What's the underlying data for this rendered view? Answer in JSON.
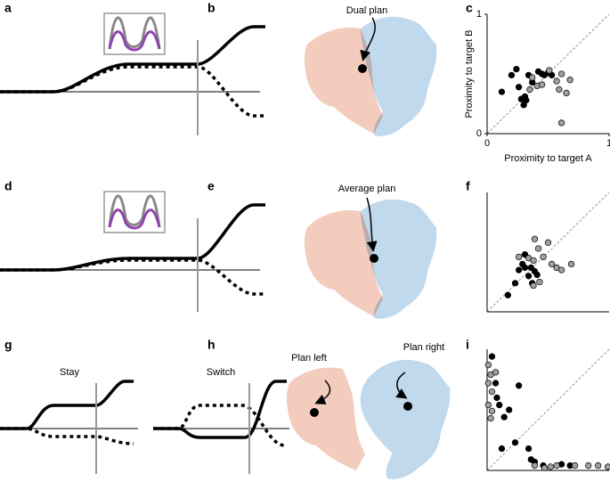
{
  "panels": {
    "letters": [
      "a",
      "b",
      "c",
      "d",
      "e",
      "f",
      "g",
      "h",
      "i"
    ]
  },
  "annotations": {
    "b": "Dual plan",
    "e": "Average plan",
    "h_left": "Plan left",
    "h_right": "Plan right",
    "g_left": "Stay",
    "g_right": "Switch"
  },
  "chart_data": [
    {
      "type": "scatter",
      "xlabel": "Proximity to target A",
      "ylabel": "Proximity to target B",
      "xlim": [
        0,
        1
      ],
      "ylim": [
        0,
        1
      ],
      "xticks": [
        0,
        1
      ],
      "yticks": [
        0,
        1
      ],
      "series": [
        {
          "color": "#000000",
          "x": [
            0.12,
            0.2,
            0.24,
            0.26,
            0.28,
            0.31,
            0.3,
            0.32,
            0.34,
            0.37,
            0.42,
            0.45,
            0.47,
            0.5,
            0.53
          ],
          "values": [
            0.35,
            0.49,
            0.54,
            0.39,
            0.29,
            0.31,
            0.24,
            0.28,
            0.49,
            0.43,
            0.52,
            0.5,
            0.49,
            0.51,
            0.49
          ]
        },
        {
          "color": "#a0a0a0",
          "x": [
            0.35,
            0.37,
            0.41,
            0.45,
            0.51,
            0.57,
            0.61,
            0.65,
            0.68,
            0.59,
            0.61
          ],
          "values": [
            0.37,
            0.47,
            0.4,
            0.41,
            0.53,
            0.44,
            0.5,
            0.34,
            0.45,
            0.37,
            0.09
          ]
        }
      ]
    },
    {
      "type": "scatter",
      "xlim": [
        0,
        1
      ],
      "ylim": [
        0,
        1
      ],
      "series": [
        {
          "color": "#000000",
          "x": [
            0.17,
            0.23,
            0.26,
            0.29,
            0.31,
            0.36,
            0.34,
            0.39,
            0.37,
            0.41,
            0.31
          ],
          "values": [
            0.14,
            0.24,
            0.35,
            0.4,
            0.37,
            0.37,
            0.3,
            0.34,
            0.24,
            0.31,
            0.48
          ]
        },
        {
          "color": "#a0a0a0",
          "x": [
            0.34,
            0.38,
            0.42,
            0.46,
            0.5,
            0.53,
            0.57,
            0.61,
            0.69,
            0.38,
            0.43,
            0.26,
            0.39
          ],
          "values": [
            0.45,
            0.43,
            0.53,
            0.46,
            0.58,
            0.4,
            0.37,
            0.35,
            0.4,
            0.22,
            0.25,
            0.46,
            0.61
          ]
        }
      ]
    },
    {
      "type": "scatter",
      "xlim": [
        0,
        1
      ],
      "ylim": [
        0,
        1
      ],
      "series": [
        {
          "color": "#000000",
          "x": [
            0.04,
            0.07,
            0.08,
            0.1,
            0.14,
            0.18,
            0.26,
            0.12,
            0.23,
            0.34,
            0.36,
            0.39,
            0.46,
            0.61,
            0.68
          ],
          "values": [
            0.94,
            0.72,
            0.6,
            0.54,
            0.44,
            0.5,
            0.7,
            0.18,
            0.23,
            0.18,
            0.09,
            0.07,
            0.04,
            0.05,
            0.04
          ]
        },
        {
          "color": "#a0a0a0",
          "x": [
            0.01,
            0.03,
            0.01,
            0.04,
            0.01,
            0.04,
            0.03,
            0.07,
            0.39,
            0.52,
            0.57,
            0.72,
            0.83,
            0.91,
            0.99,
            0.47
          ],
          "values": [
            0.87,
            0.79,
            0.72,
            0.65,
            0.54,
            0.49,
            0.43,
            0.81,
            0.04,
            0.03,
            0.04,
            0.04,
            0.04,
            0.04,
            0.03,
            0.02
          ]
        }
      ]
    }
  ]
}
